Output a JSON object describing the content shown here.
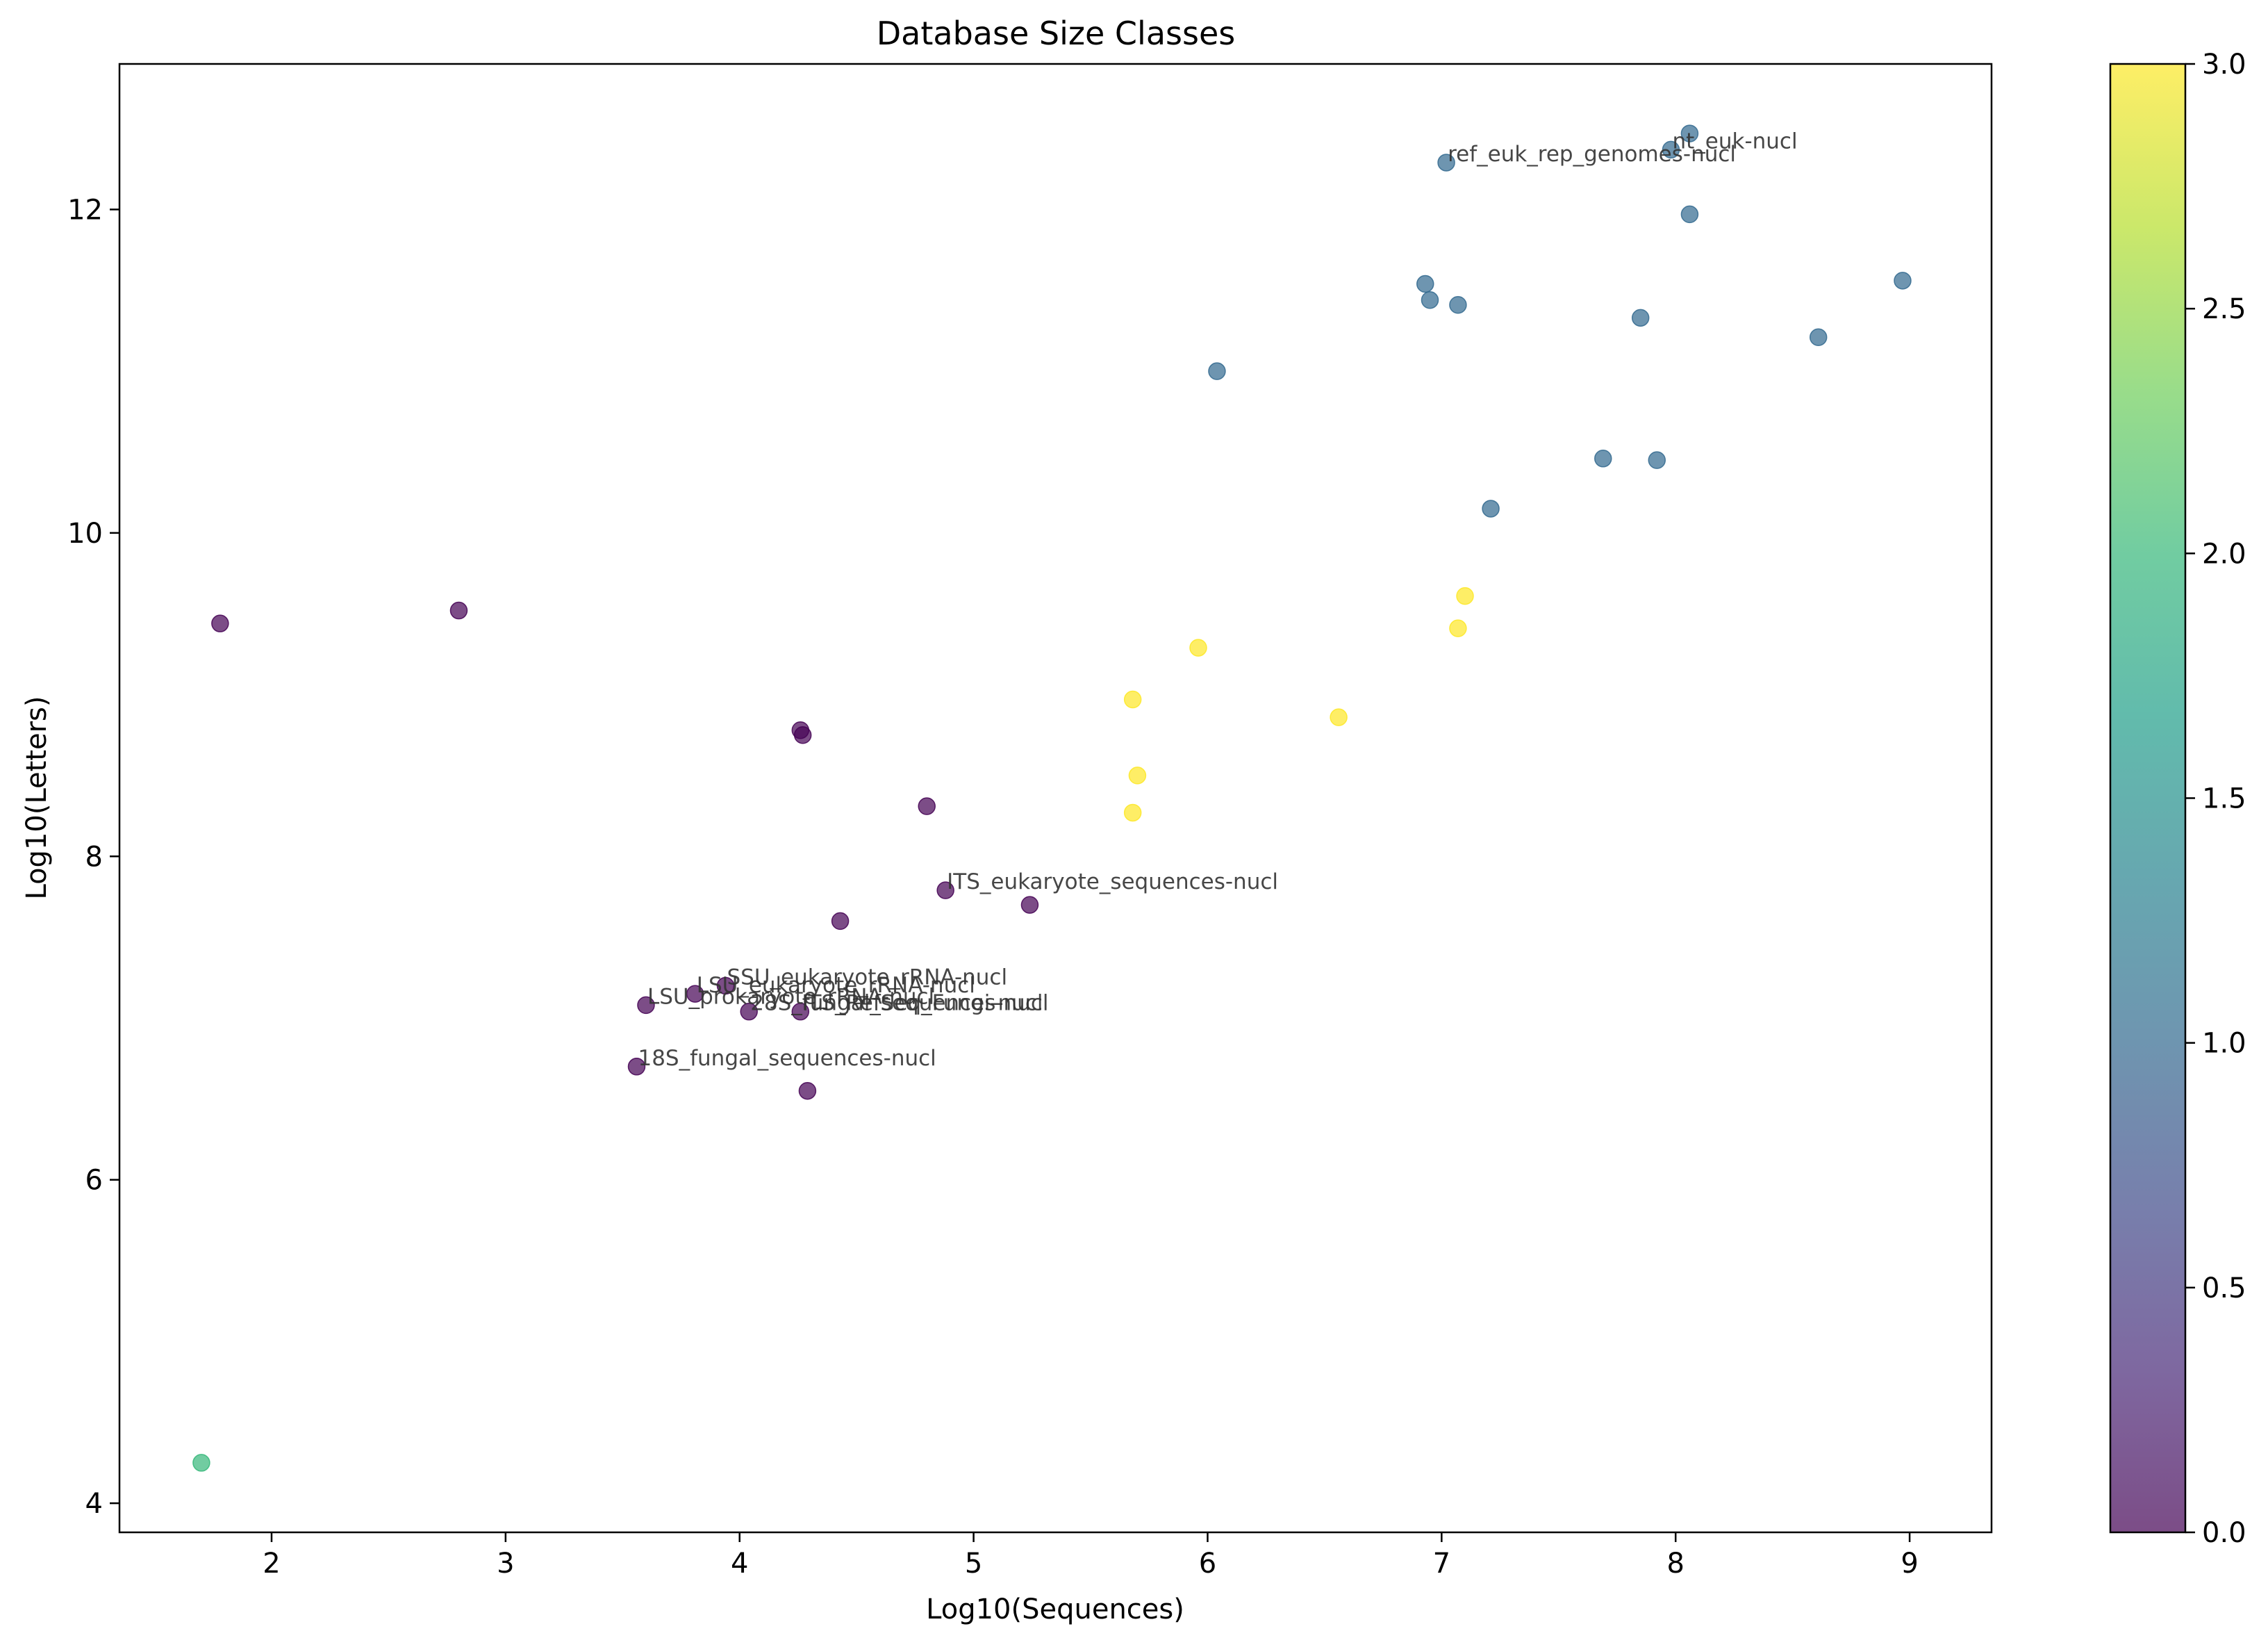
{
  "chart_data": {
    "type": "scatter",
    "title": "Database Size Classes",
    "xlabel": "Log10(Sequences)",
    "ylabel": "Log10(Letters)",
    "xlim": [
      1.35,
      9.35
    ],
    "ylim": [
      3.82,
      12.9
    ],
    "xticks": [
      "2",
      "3",
      "4",
      "5",
      "6",
      "7",
      "8",
      "9"
    ],
    "yticks": [
      "4",
      "6",
      "8",
      "10",
      "12"
    ],
    "grid": false,
    "colorbar": {
      "min": 0,
      "max": 3,
      "colormap": "viridis",
      "ticks": [
        "0.0",
        "0.5",
        "1.0",
        "1.5",
        "2.0",
        "2.5",
        "3.0"
      ]
    },
    "class_colors": {
      "0": "#440154",
      "1": "#31688e",
      "2": "#35b779",
      "3": "#fde725"
    },
    "points": [
      {
        "x": 1.78,
        "y": 9.44,
        "c": 0
      },
      {
        "x": 2.8,
        "y": 9.52,
        "c": 0
      },
      {
        "x": 4.26,
        "y": 8.78,
        "c": 0
      },
      {
        "x": 4.27,
        "y": 8.75,
        "c": 0
      },
      {
        "x": 4.8,
        "y": 8.31,
        "c": 0
      },
      {
        "x": 4.88,
        "y": 7.79,
        "c": 0,
        "label": "ITS_eukaryote_sequences-nucl"
      },
      {
        "x": 5.24,
        "y": 7.7,
        "c": 0
      },
      {
        "x": 4.43,
        "y": 7.6,
        "c": 0
      },
      {
        "x": 3.94,
        "y": 7.2,
        "c": 0,
        "label": "SSU_eukaryote_rRNA-nucl"
      },
      {
        "x": 3.81,
        "y": 7.15,
        "c": 0,
        "label": "LSU_eukaryote_rRNA-nucl"
      },
      {
        "x": 3.6,
        "y": 7.08,
        "c": 0,
        "label": "LSU_prokaryote_rRNA-nucl"
      },
      {
        "x": 4.04,
        "y": 7.04,
        "c": 0,
        "label": "28S_fungal_sequences-nucl"
      },
      {
        "x": 4.26,
        "y": 7.04,
        "c": 0,
        "label": "ITS_RefSeq_Fungi-nucl"
      },
      {
        "x": 3.56,
        "y": 6.7,
        "c": 0,
        "label": "18S_fungal_sequences-nucl"
      },
      {
        "x": 4.29,
        "y": 6.55,
        "c": 0
      },
      {
        "x": 1.7,
        "y": 4.25,
        "c": 2
      },
      {
        "x": 5.68,
        "y": 8.97,
        "c": 3
      },
      {
        "x": 5.96,
        "y": 9.29,
        "c": 3
      },
      {
        "x": 5.7,
        "y": 8.5,
        "c": 3
      },
      {
        "x": 5.68,
        "y": 8.27,
        "c": 3
      },
      {
        "x": 6.56,
        "y": 8.86,
        "c": 3
      },
      {
        "x": 7.07,
        "y": 9.41,
        "c": 3
      },
      {
        "x": 7.1,
        "y": 9.61,
        "c": 3
      },
      {
        "x": 6.04,
        "y": 11.0,
        "c": 1
      },
      {
        "x": 6.93,
        "y": 11.54,
        "c": 1
      },
      {
        "x": 6.95,
        "y": 11.44,
        "c": 1
      },
      {
        "x": 7.07,
        "y": 11.41,
        "c": 1
      },
      {
        "x": 7.02,
        "y": 12.29,
        "c": 1,
        "label": "ref_euk_rep_genomes-nucl"
      },
      {
        "x": 7.98,
        "y": 12.37,
        "c": 1,
        "label": "nt_euk-nucl"
      },
      {
        "x": 8.06,
        "y": 12.47,
        "c": 1
      },
      {
        "x": 8.06,
        "y": 11.97,
        "c": 1
      },
      {
        "x": 7.85,
        "y": 11.33,
        "c": 1
      },
      {
        "x": 8.61,
        "y": 11.21,
        "c": 1
      },
      {
        "x": 8.97,
        "y": 11.56,
        "c": 1
      },
      {
        "x": 7.69,
        "y": 10.46,
        "c": 1
      },
      {
        "x": 7.92,
        "y": 10.45,
        "c": 1
      },
      {
        "x": 7.21,
        "y": 10.15,
        "c": 1
      }
    ]
  }
}
